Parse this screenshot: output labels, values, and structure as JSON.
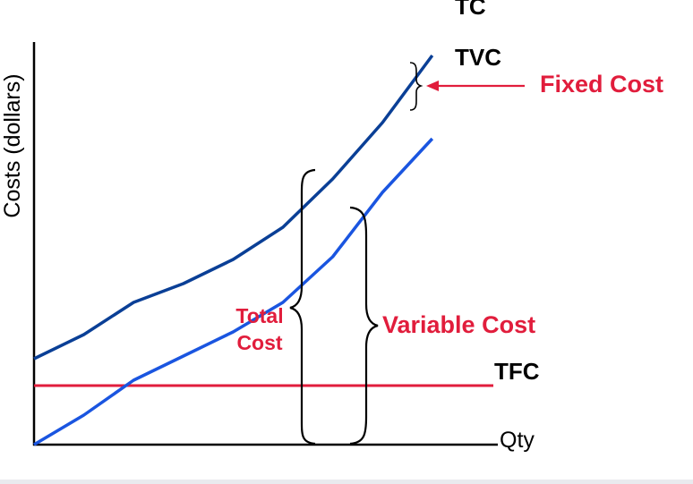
{
  "chart_data": {
    "type": "line",
    "title": "",
    "xlabel": "Qty",
    "ylabel": "Costs (dollars)",
    "x": [
      0,
      1,
      2,
      3,
      4,
      5,
      6,
      7,
      8
    ],
    "series": [
      {
        "name": "TC",
        "values": [
          3.2,
          4.1,
          5.3,
          6.0,
          6.9,
          8.1,
          9.9,
          12.0,
          14.5
        ],
        "color": "#0a3f96"
      },
      {
        "name": "TVC",
        "values": [
          0.0,
          1.1,
          2.4,
          3.3,
          4.2,
          5.3,
          7.0,
          9.4,
          11.4
        ],
        "color": "#1a55e0"
      },
      {
        "name": "TFC",
        "values": [
          2.2,
          2.2,
          2.2,
          2.2,
          2.2,
          2.2,
          2.2,
          2.2,
          2.2
        ],
        "color": "#e11d3c"
      }
    ],
    "annotations": {
      "total_cost": [
        "Total",
        "Cost"
      ],
      "variable_cost": "Variable Cost",
      "fixed_cost": "Fixed Cost"
    },
    "colors": {
      "axis": "#000000",
      "tc": "#0a3f96",
      "tvc": "#1a55e0",
      "tfc": "#e11d3c",
      "annotation": "#e11d3c",
      "brace": "#000000"
    }
  }
}
